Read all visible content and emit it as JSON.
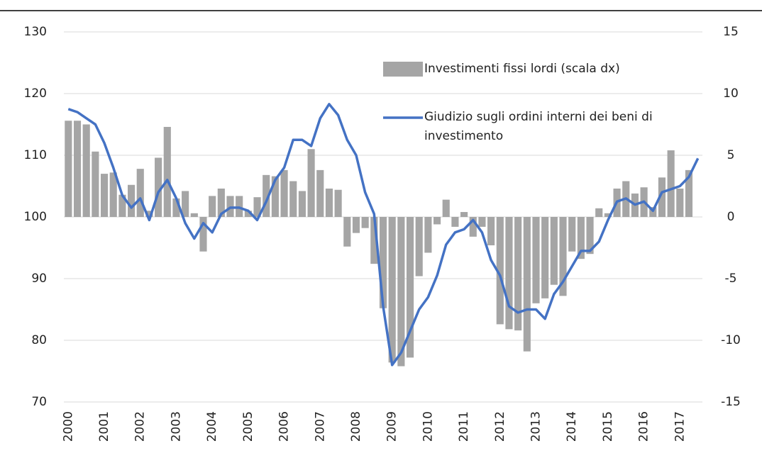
{
  "chart_data": {
    "type": "bar-line",
    "categories": [
      "2000",
      null,
      null,
      null,
      "2001",
      null,
      null,
      null,
      "2002",
      null,
      null,
      null,
      "2003",
      null,
      null,
      null,
      "2004",
      null,
      null,
      null,
      "2005",
      null,
      null,
      null,
      "2006",
      null,
      null,
      null,
      "2007",
      null,
      null,
      null,
      "2008",
      null,
      null,
      null,
      "2009",
      null,
      null,
      null,
      "2010",
      null,
      null,
      null,
      "2011",
      null,
      null,
      null,
      "2012",
      null,
      null,
      null,
      "2013",
      null,
      null,
      null,
      "2014",
      null,
      null,
      null,
      "2015",
      null,
      null,
      null,
      "2016",
      null,
      null,
      null,
      "2017",
      null,
      null
    ],
    "series": [
      {
        "name": "Investimenti fissi lordi (scala dx)",
        "type": "bar",
        "axis": "y2",
        "color": "#a5a5a5",
        "values": [
          7.8,
          7.8,
          7.5,
          5.3,
          3.5,
          3.6,
          1.8,
          2.6,
          3.9,
          0.5,
          4.8,
          7.3,
          1.5,
          2.1,
          0.3,
          -2.8,
          1.7,
          2.3,
          1.7,
          1.7,
          0.5,
          1.6,
          3.4,
          3.3,
          3.8,
          2.9,
          2.1,
          5.5,
          3.8,
          2.3,
          2.2,
          -2.4,
          -1.3,
          -0.9,
          -3.8,
          -7.4,
          -11.8,
          -12.1,
          -11.4,
          -4.8,
          -2.9,
          -0.6,
          1.4,
          -0.8,
          0.4,
          -1.6,
          -0.8,
          -2.3,
          -8.7,
          -9.1,
          -9.2,
          -10.9,
          -7,
          -6.6,
          -5.5,
          -6.4,
          -2.8,
          -3.4,
          -3,
          0.7,
          0.3,
          2.3,
          2.9,
          1.9,
          2.4,
          0.8,
          3.2,
          5.4,
          2.3,
          3.8,
          null
        ]
      },
      {
        "name": "Giudizio sugli ordini interni dei beni di investimento",
        "type": "line",
        "axis": "y",
        "color": "#4472c4",
        "values": [
          117.5,
          117,
          116,
          115,
          112,
          108,
          103.5,
          101.5,
          103,
          99.5,
          104,
          106,
          103,
          99,
          96.5,
          99,
          97.5,
          100.5,
          101.5,
          101.5,
          101,
          99.5,
          102.5,
          106,
          108,
          112.5,
          112.5,
          111.5,
          116,
          118.3,
          116.5,
          112.5,
          110,
          104,
          100.5,
          85.5,
          76,
          78,
          81.5,
          85,
          87,
          90.5,
          95.5,
          97.5,
          98,
          99.5,
          97.5,
          93,
          90.5,
          85.5,
          84.5,
          85,
          85,
          83.5,
          87.5,
          89.5,
          92,
          94.5,
          94.5,
          96,
          99.5,
          102.5,
          103,
          102,
          102.5,
          101,
          104,
          104.5,
          105,
          106.5,
          109.5
        ]
      }
    ],
    "ylim": [
      70,
      130
    ],
    "yticks": [
      70,
      80,
      90,
      100,
      110,
      120,
      130
    ],
    "y2lim": [
      -15,
      15
    ],
    "y2ticks": [
      -15,
      -10,
      -5,
      0,
      5,
      10,
      15
    ],
    "grid": true
  }
}
